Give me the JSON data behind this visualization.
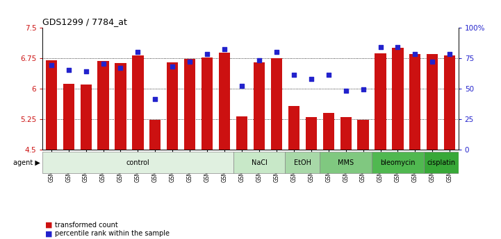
{
  "title": "GDS1299 / 7784_at",
  "samples": [
    "GSM40714",
    "GSM40715",
    "GSM40716",
    "GSM40717",
    "GSM40718",
    "GSM40719",
    "GSM40720",
    "GSM40721",
    "GSM40722",
    "GSM40723",
    "GSM40724",
    "GSM40725",
    "GSM40726",
    "GSM40727",
    "GSM40731",
    "GSM40732",
    "GSM40728",
    "GSM40729",
    "GSM40730",
    "GSM40733",
    "GSM40734",
    "GSM40735",
    "GSM40736",
    "GSM40737"
  ],
  "bar_values": [
    6.7,
    6.12,
    6.09,
    6.67,
    6.63,
    6.82,
    5.22,
    6.65,
    6.73,
    6.76,
    6.88,
    5.32,
    6.65,
    6.74,
    5.56,
    5.3,
    5.4,
    5.29,
    5.23,
    6.87,
    7.0,
    6.84,
    6.84,
    6.82
  ],
  "percentile_values": [
    69,
    65,
    64,
    70,
    67,
    80,
    41,
    68,
    72,
    78,
    82,
    52,
    73,
    80,
    61,
    58,
    61,
    48,
    49,
    84,
    84,
    78,
    72,
    78
  ],
  "agents": [
    {
      "label": "control",
      "start": 0,
      "end": 10,
      "color": "#e0f0e0"
    },
    {
      "label": "NaCl",
      "start": 11,
      "end": 13,
      "color": "#c8e8c8"
    },
    {
      "label": "EtOH",
      "start": 14,
      "end": 15,
      "color": "#a8d8a8"
    },
    {
      "label": "MMS",
      "start": 16,
      "end": 18,
      "color": "#80c880"
    },
    {
      "label": "bleomycin",
      "start": 19,
      "end": 21,
      "color": "#50b850"
    },
    {
      "label": "cisplatin",
      "start": 22,
      "end": 23,
      "color": "#38a838"
    }
  ],
  "ylim_left": [
    4.5,
    7.5
  ],
  "ylim_right": [
    0,
    100
  ],
  "yticks_left": [
    4.5,
    5.25,
    6.0,
    6.75,
    7.5
  ],
  "ytick_labels_left": [
    "4.5",
    "5.25",
    "6",
    "6.75",
    "7.5"
  ],
  "yticks_right": [
    0,
    25,
    50,
    75,
    100
  ],
  "ytick_labels_right": [
    "0",
    "25",
    "50",
    "75",
    "100%"
  ],
  "bar_color": "#cc1111",
  "dot_color": "#2222cc",
  "bar_width": 0.65,
  "background_color": "#ffffff"
}
